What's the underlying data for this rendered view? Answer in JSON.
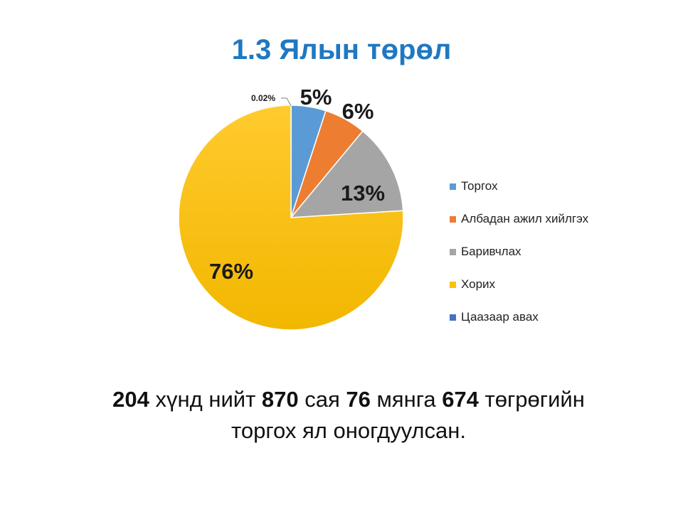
{
  "title": "1.3 Ялын төрөл",
  "chart_data": {
    "type": "pie",
    "slices": [
      {
        "name": "Торгох",
        "value": 5,
        "label": "5%",
        "color": "#5b9bd5"
      },
      {
        "name": "Албадан ажил хийлгэх",
        "value": 6,
        "label": "6%",
        "color": "#ed7d31"
      },
      {
        "name": "Баривчлах",
        "value": 13,
        "label": "13%",
        "color": "#a5a5a5"
      },
      {
        "name": "Хорих",
        "value": 76,
        "label": "76%",
        "color": "#ffc000"
      },
      {
        "name": "Цаазаар авах",
        "value": 0.02,
        "label": "0.02%",
        "color": "#4472c4"
      }
    ],
    "legend_position": "right"
  },
  "caption": {
    "line1": [
      {
        "text": "204",
        "bold": true
      },
      {
        "text": " хүнд нийт ",
        "bold": false
      },
      {
        "text": "870",
        "bold": true
      },
      {
        "text": " сая ",
        "bold": false
      },
      {
        "text": "76",
        "bold": true
      },
      {
        "text": " мянга ",
        "bold": false
      },
      {
        "text": "674",
        "bold": true
      },
      {
        "text": " төгрөгийн",
        "bold": false
      }
    ],
    "line2": "торгох ял оногдуулсан."
  }
}
